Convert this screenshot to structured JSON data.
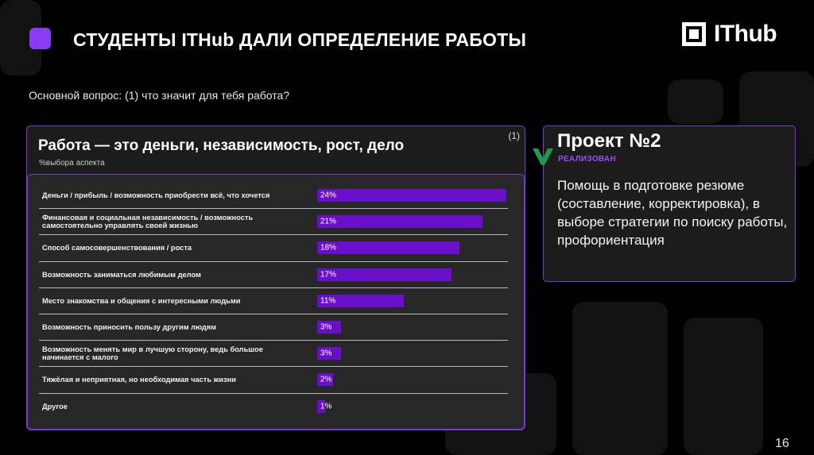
{
  "slide": {
    "title": "СТУДЕНТЫ ITHub ДАЛИ ОПРЕДЕЛЕНИЕ РАБОТЫ",
    "logo_text": "IThub",
    "question": "Основной вопрос: (1) что значит для тебя работа?",
    "page_number": "16"
  },
  "panel": {
    "title": "Работа — это деньги, независимость, рост, дело",
    "footnote": "(1)",
    "subtitle": "%выбора аспекта"
  },
  "chart_data": {
    "type": "bar",
    "orientation": "horizontal",
    "categories": [
      "Деньги / прибыль / возможность приобрести всё, что хочется",
      "Финансовая и социальная независимость / возможность самостоятельно управлять своей жизнью",
      "Способ самосовершенствования / роста",
      "Возможность заниматься любимым делом",
      "Место знакомства и общения с интересными людьми",
      "Возможность приносить пользу другим людям",
      "Возможность менять мир в лучшую сторону, ведь большое начинается с малого",
      "Тяжёлая и неприятная, но необходимая часть жизни",
      "Другое"
    ],
    "values": [
      24,
      21,
      18,
      17,
      11,
      3,
      3,
      2,
      1
    ],
    "value_labels": [
      "24%",
      "21%",
      "18%",
      "17%",
      "11%",
      "3%",
      "3%",
      "2%",
      "1%"
    ],
    "xlim": [
      0,
      24
    ],
    "bar_color": "#6a0fc9",
    "grid": false
  },
  "project": {
    "title": "Проект №2",
    "status": "РЕАЛИЗОВАН",
    "description": "Помощь в подготовке резюме (составление, корректировка), в выборе стратегии по поиску работы, профориентация",
    "check_icon": "checkmark-icon",
    "accent_color": "#9a4cf6"
  }
}
